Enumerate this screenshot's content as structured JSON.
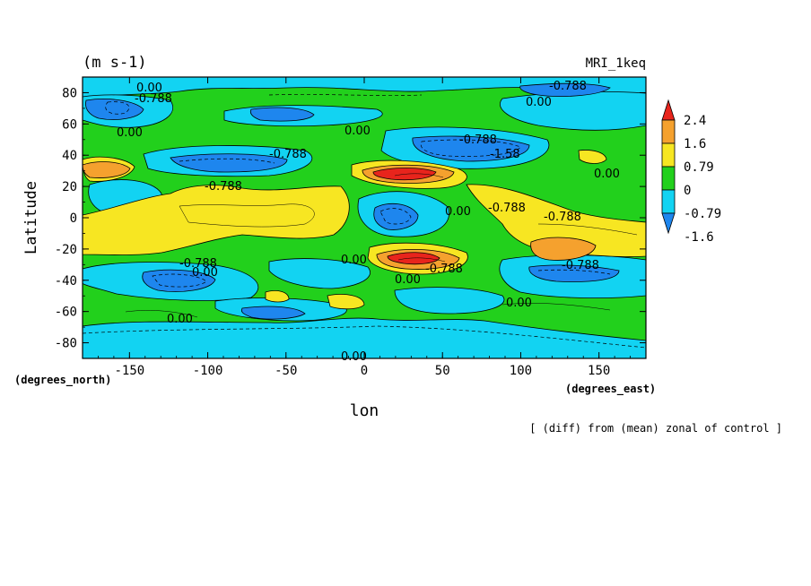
{
  "chart_data": {
    "type": "heatmap",
    "title": "(m s-1)",
    "run_label": "MRI_1keq",
    "xlabel": "lon",
    "ylabel": "Latitude",
    "x_unit": "(degrees_east)",
    "y_unit": "(degrees_north)",
    "footer": "[ (diff) from (mean) zonal of control ]",
    "xlim": [
      -180,
      180
    ],
    "ylim": [
      -90,
      90
    ],
    "x_ticks": [
      "-150",
      "-100",
      "-50",
      "0",
      "50",
      "100",
      "150"
    ],
    "x_tick_values": [
      -150,
      -100,
      -50,
      0,
      50,
      100,
      150
    ],
    "y_ticks": [
      "80",
      "60",
      "40",
      "20",
      "0",
      "-20",
      "-40",
      "-60",
      "-80"
    ],
    "y_tick_values": [
      80,
      60,
      40,
      20,
      0,
      -20,
      -40,
      -60,
      -80
    ],
    "colorbar": {
      "labels": [
        "2.4",
        "1.6",
        "0.79",
        "0",
        "-0.79",
        "-1.6"
      ],
      "colors": [
        "#e8241c",
        "#f5a12e",
        "#f7e622",
        "#22d01c",
        "#12d3f2",
        "#1e86ee"
      ]
    },
    "contour_labels": [
      "0.00",
      "-0.788",
      "-1.58"
    ],
    "grid": false,
    "legend": "right"
  }
}
